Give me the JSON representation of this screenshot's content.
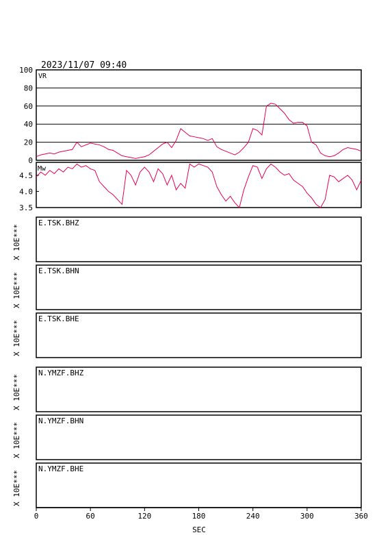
{
  "timestamp": "2023/11/07 09:40",
  "colors": {
    "trace": "#e8004a",
    "axis": "#000000",
    "background": "#ffffff"
  },
  "chart_data": [
    {
      "type": "line",
      "label": "VR",
      "xlim": [
        0,
        360
      ],
      "ylim": [
        0,
        100
      ],
      "y_ticks": [
        "0",
        "20",
        "40",
        "60",
        "80",
        "100"
      ],
      "grid": true,
      "x": [
        0,
        5,
        10,
        15,
        20,
        25,
        30,
        35,
        40,
        45,
        50,
        55,
        60,
        65,
        70,
        75,
        80,
        85,
        90,
        95,
        100,
        105,
        110,
        115,
        120,
        125,
        130,
        135,
        140,
        145,
        150,
        155,
        160,
        165,
        170,
        175,
        180,
        185,
        190,
        195,
        200,
        205,
        210,
        215,
        220,
        225,
        230,
        235,
        240,
        245,
        250,
        255,
        260,
        265,
        270,
        275,
        280,
        285,
        290,
        295,
        300,
        305,
        310,
        315,
        320,
        325,
        330,
        335,
        340,
        345,
        350,
        355,
        360
      ],
      "y": [
        4,
        6,
        7,
        8,
        7,
        9,
        10,
        11,
        12,
        20,
        15,
        17,
        19,
        18,
        17,
        15,
        12,
        11,
        8,
        5,
        4,
        3,
        2,
        3,
        4,
        6,
        10,
        14,
        18,
        20,
        14,
        22,
        35,
        31,
        27,
        26,
        25,
        24,
        22,
        24,
        15,
        12,
        10,
        8,
        6,
        9,
        14,
        20,
        35,
        33,
        28,
        60,
        63,
        62,
        57,
        52,
        45,
        41,
        42,
        42,
        38,
        20,
        17,
        8,
        5,
        4,
        5,
        8,
        12,
        14,
        13,
        12,
        10
      ]
    },
    {
      "type": "line",
      "label": "Mw",
      "xlim": [
        0,
        360
      ],
      "ylim": [
        3.5,
        4.9
      ],
      "y_ticks": [
        "3.5",
        "4.0",
        "4.5"
      ],
      "grid": false,
      "x": [
        0,
        5,
        10,
        15,
        20,
        25,
        30,
        35,
        40,
        45,
        50,
        55,
        60,
        65,
        70,
        75,
        80,
        85,
        90,
        95,
        100,
        105,
        110,
        115,
        120,
        125,
        130,
        135,
        140,
        145,
        150,
        155,
        160,
        165,
        170,
        175,
        180,
        185,
        190,
        195,
        200,
        205,
        210,
        215,
        220,
        225,
        230,
        235,
        240,
        245,
        250,
        255,
        260,
        265,
        270,
        275,
        280,
        285,
        290,
        295,
        300,
        305,
        310,
        315,
        320,
        325,
        330,
        335,
        340,
        345,
        350,
        355,
        360
      ],
      "y": [
        4.45,
        4.6,
        4.5,
        4.65,
        4.55,
        4.7,
        4.6,
        4.75,
        4.7,
        4.85,
        4.75,
        4.8,
        4.7,
        4.65,
        4.3,
        4.15,
        4.0,
        3.9,
        3.75,
        3.6,
        4.65,
        4.5,
        4.2,
        4.6,
        4.75,
        4.6,
        4.3,
        4.7,
        4.55,
        4.2,
        4.5,
        4.05,
        4.25,
        4.1,
        4.85,
        4.75,
        4.85,
        4.8,
        4.75,
        4.6,
        4.15,
        3.9,
        3.7,
        3.85,
        3.65,
        3.5,
        4.05,
        4.45,
        4.8,
        4.75,
        4.4,
        4.7,
        4.85,
        4.75,
        4.6,
        4.5,
        4.55,
        4.35,
        4.25,
        4.15,
        3.95,
        3.8,
        3.6,
        3.5,
        3.75,
        4.5,
        4.45,
        4.3,
        4.4,
        4.5,
        4.35,
        4.05,
        4.35
      ]
    },
    {
      "type": "line",
      "label": "E.TSK.BHZ",
      "ylabel": "X 10E***",
      "series": []
    },
    {
      "type": "line",
      "label": "E.TSK.BHN",
      "ylabel": "X 10E***",
      "series": []
    },
    {
      "type": "line",
      "label": "E.TSK.BHE",
      "ylabel": "X 10E***",
      "series": []
    },
    {
      "type": "line",
      "label": "N.YMZF.BHZ",
      "ylabel": "X 10E***",
      "series": []
    },
    {
      "type": "line",
      "label": "N.YMZF.BHN",
      "ylabel": "X 10E***",
      "series": []
    },
    {
      "type": "line",
      "label": "N.YMZF.BHE",
      "ylabel": "X 10E***",
      "series": []
    }
  ],
  "x_axis": {
    "label": "SEC",
    "ticks": [
      "0",
      "60",
      "120",
      "180",
      "240",
      "300",
      "360"
    ],
    "range": [
      0,
      360
    ]
  }
}
